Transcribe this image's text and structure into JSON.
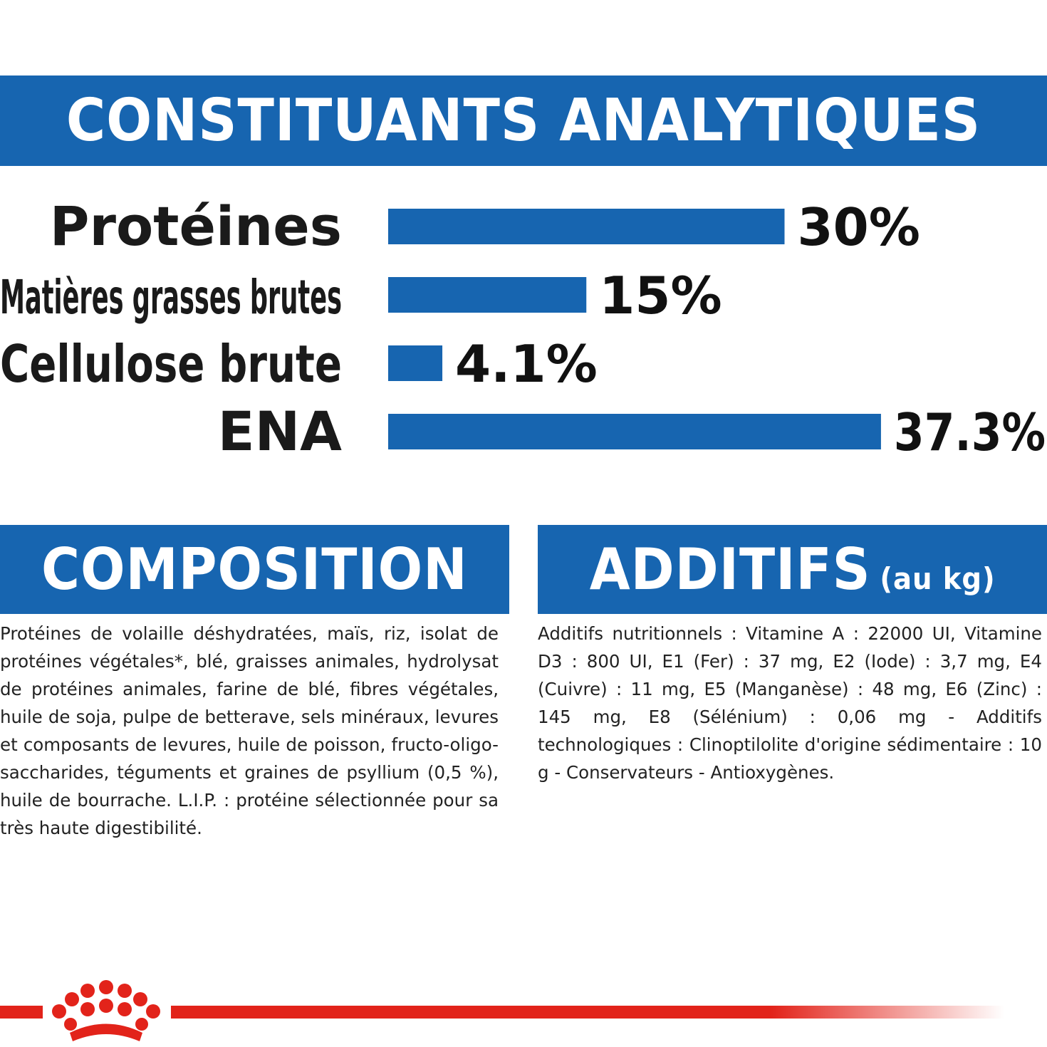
{
  "headings": {
    "analytics": "CONSTITUANTS ANALYTIQUES",
    "composition": "COMPOSITION",
    "additives": "ADDITIFS",
    "additives_suffix": "(au kg)"
  },
  "chart_data": {
    "type": "bar",
    "orientation": "horizontal",
    "categories": [
      "Protéines",
      "Matières grasses brutes",
      "Cellulose brute",
      "ENA"
    ],
    "values": [
      30,
      15,
      4.1,
      37.3
    ],
    "value_labels": [
      "30%",
      "15%",
      "4.1%",
      "37.3%"
    ],
    "unit": "%",
    "bar_color": "#1765b0"
  },
  "composition_text": "Protéines de volaille déshydratées, maïs, riz, isolat de protéines végétales*, blé, graisses animales, hydrolysat de protéines animales, farine de blé, fibres végétales, huile de soja, pulpe de betterave, sels minéraux, levures et composants de levures, huile de poisson, fructo-oligo-saccharides, téguments et graines de psyllium (0,5 %), huile de bourrache. L.I.P. : protéine sélectionnée pour sa très haute digestibilité.",
  "additives_text": "Additifs nutritionnels : Vitamine A : 22000 UI, Vitamine D3 : 800 UI, E1 (Fer) : 37 mg, E2 (Iode) : 3,7 mg, E4 (Cuivre) : 11 mg, E5 (Manganèse) : 48 mg, E6 (Zinc) : 145 mg, E8 (Sélénium) : 0,06 mg - Additifs technologiques : Clinoptilolite d'origine sédimentaire : 10 g - Conservateurs - Antioxygènes.",
  "colors": {
    "primary_blue": "#1765b0",
    "brand_red": "#e2231a"
  },
  "logo": {
    "icon": "royal-canin-crown-icon"
  }
}
